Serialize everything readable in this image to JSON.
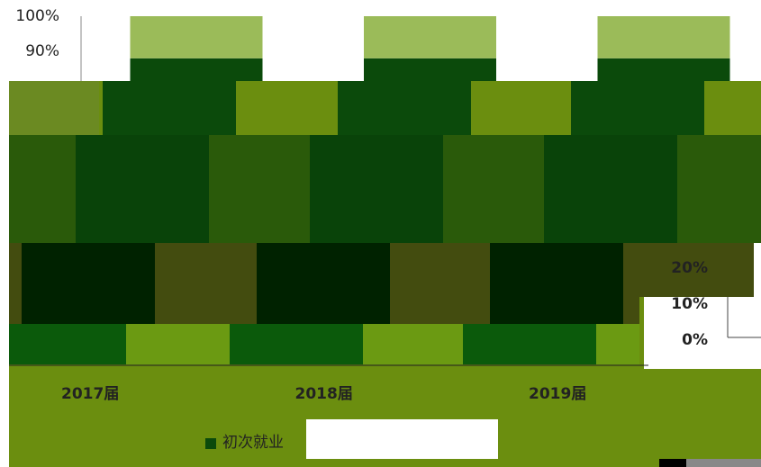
{
  "chart_data": [
    {
      "type": "bar",
      "stacked": true,
      "categories": [
        "2017届",
        "2018届",
        "2019届"
      ],
      "series": [
        {
          "name": "初次就业",
          "color": "#0b4a0b",
          "values": [
            88,
            88,
            88
          ]
        },
        {
          "color": "#9bbb59",
          "values": [
            12,
            12,
            12
          ]
        }
      ],
      "ylim": [
        0,
        100
      ],
      "yticks": [
        {
          "value": 100,
          "label": "100%"
        },
        {
          "value": 90,
          "label": "90%"
        }
      ]
    },
    {
      "type": "axis",
      "ylim": [
        0,
        20
      ],
      "yticks": [
        {
          "value": 0,
          "label": "0%"
        },
        {
          "value": 10,
          "label": "10%"
        },
        {
          "value": 20,
          "label": "20%"
        }
      ]
    }
  ]
}
